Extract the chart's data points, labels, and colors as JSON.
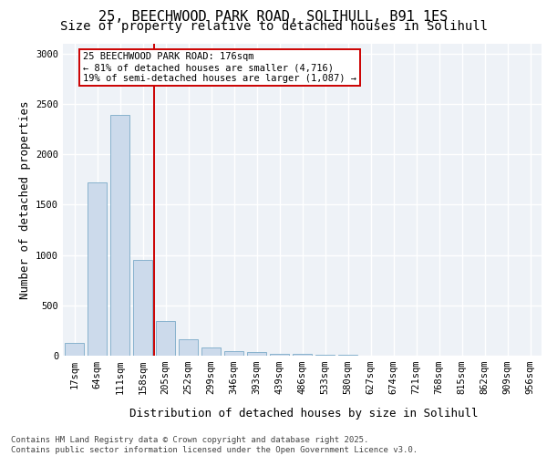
{
  "title_line1": "25, BEECHWOOD PARK ROAD, SOLIHULL, B91 1ES",
  "title_line2": "Size of property relative to detached houses in Solihull",
  "xlabel": "Distribution of detached houses by size in Solihull",
  "ylabel": "Number of detached properties",
  "categories": [
    "17sqm",
    "64sqm",
    "111sqm",
    "158sqm",
    "205sqm",
    "252sqm",
    "299sqm",
    "346sqm",
    "393sqm",
    "439sqm",
    "486sqm",
    "533sqm",
    "580sqm",
    "627sqm",
    "674sqm",
    "721sqm",
    "768sqm",
    "815sqm",
    "862sqm",
    "909sqm",
    "956sqm"
  ],
  "values": [
    130,
    1720,
    2390,
    950,
    340,
    160,
    80,
    45,
    35,
    20,
    15,
    8,
    5,
    3,
    2,
    1,
    0,
    0,
    0,
    0,
    0
  ],
  "bar_color": "#ccdaeb",
  "bar_edge_color": "#7aaac8",
  "vline_x": 3.5,
  "vline_color": "#cc0000",
  "annotation_box_color": "#cc0000",
  "annotation_text_line1": "25 BEECHWOOD PARK ROAD: 176sqm",
  "annotation_text_line2": "← 81% of detached houses are smaller (4,716)",
  "annotation_text_line3": "19% of semi-detached houses are larger (1,087) →",
  "ylim": [
    0,
    3100
  ],
  "yticks": [
    0,
    500,
    1000,
    1500,
    2000,
    2500,
    3000
  ],
  "bg_color": "#eef2f7",
  "grid_color": "#ffffff",
  "title1_fontsize": 11,
  "title2_fontsize": 10,
  "ylabel_fontsize": 9,
  "xlabel_fontsize": 9,
  "tick_fontsize": 7.5,
  "annot_fontsize": 7.5,
  "footer_fontsize": 6.5,
  "footer_line1": "Contains HM Land Registry data © Crown copyright and database right 2025.",
  "footer_line2": "Contains public sector information licensed under the Open Government Licence v3.0."
}
